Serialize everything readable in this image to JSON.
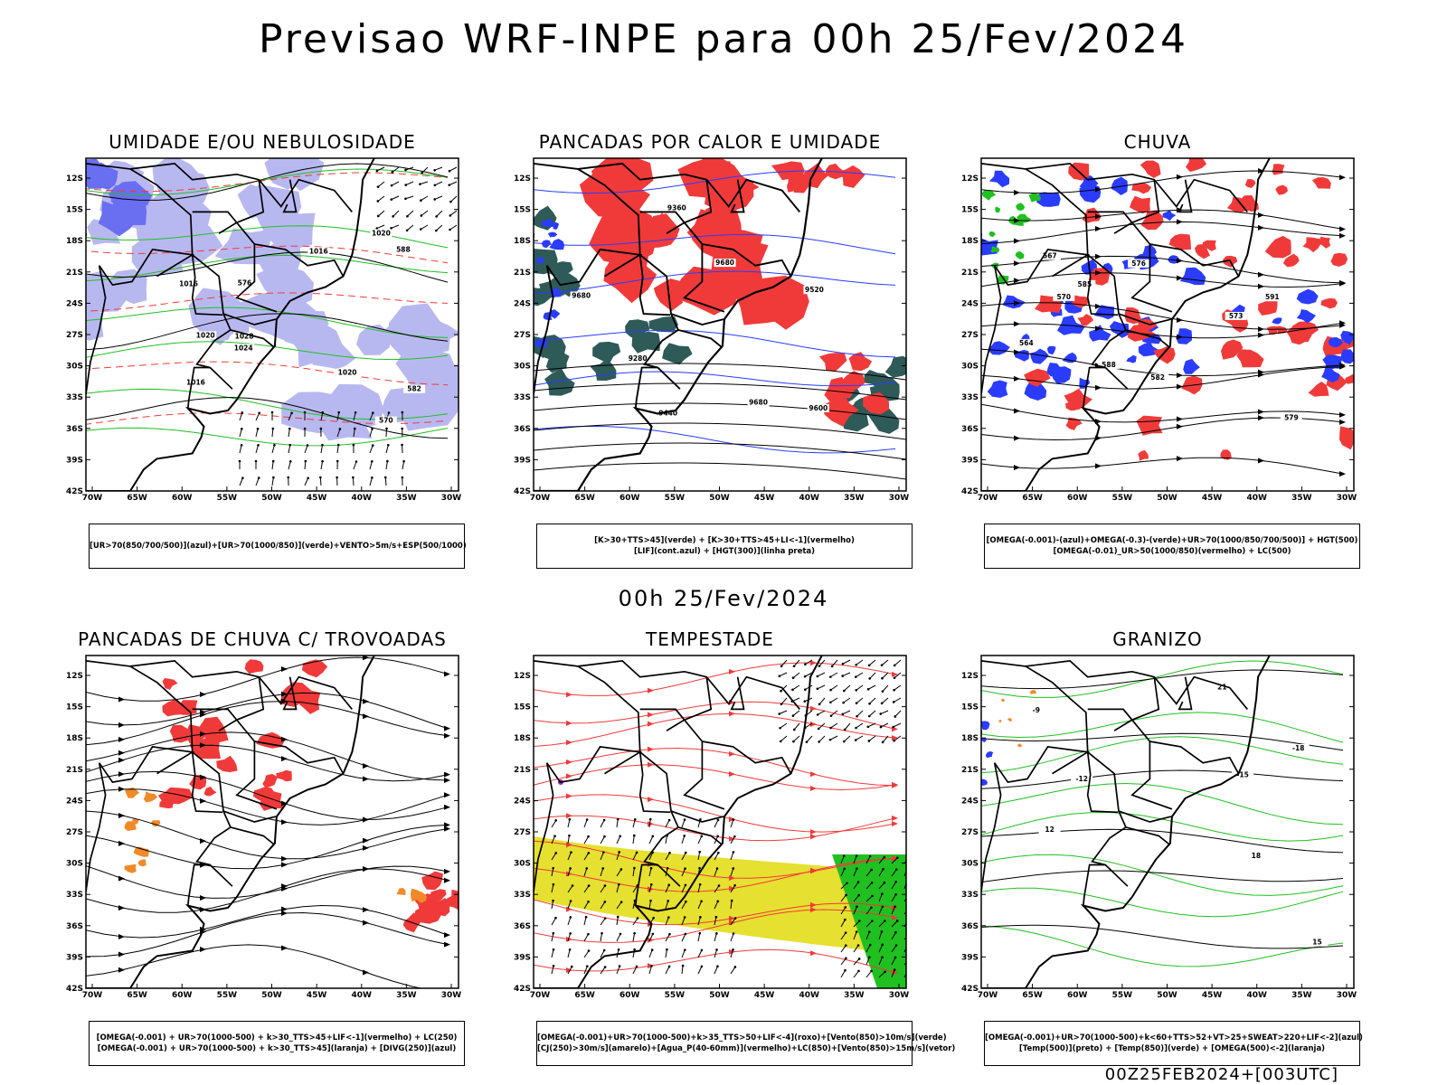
{
  "header": {
    "title": "Previsao WRF-INPE  para 00h 25/Fev/2024"
  },
  "subheader": {
    "time": "00h 25/Fev/2024"
  },
  "footer": {
    "stamp": "00Z25FEB2024+[003UTC]"
  },
  "axes": {
    "lat": [
      "12S",
      "15S",
      "18S",
      "21S",
      "24S",
      "27S",
      "30S",
      "33S",
      "36S",
      "39S",
      "42S"
    ],
    "lon": [
      "70W",
      "65W",
      "60W",
      "55W",
      "50W",
      "45W",
      "40W",
      "35W",
      "30W"
    ]
  },
  "colors": {
    "red": "#f03a3a",
    "green": "#20c020",
    "blue": "#2a3cff",
    "lavender": "#b8b8f0",
    "teal": "#2e5a58",
    "orange": "#f08a28",
    "yellow": "#e6e030",
    "purple": "#9a20c0"
  },
  "panels": [
    {
      "title": "UMIDADE E/OU NEBULOSIDADE",
      "legend": [
        "[UR>70(850/700/500)](azul)+[UR>70(1000/850)](verde)+VENTO>5m/s+ESP(500/1000)"
      ],
      "labels": [
        "1016",
        "1016",
        "1016",
        "1020",
        "1020",
        "1020",
        "1024",
        "1028",
        "570",
        "576",
        "582",
        "588"
      ]
    },
    {
      "title": "PANCADAS POR CALOR E UMIDADE",
      "legend": [
        "[K>30+TTS>45](verde) + [K>30+TTS>45+LI<-1](vermelho)",
        "[LIF](cont.azul) + [HGT(300)](linha preta)"
      ],
      "labels": [
        "9680",
        "9680",
        "9600",
        "9520",
        "9440",
        "9360",
        "9280",
        "9680"
      ]
    },
    {
      "title": "CHUVA",
      "legend": [
        "[OMEGA(-0.001)-(azul)+OMEGA(-0.3)-(verde)+UR>70(1000/850/700/500)] + HGT(500)",
        "[OMEGA(-0.01)_UR>50(1000/850)(vermelho) + LC(500)"
      ],
      "labels": [
        "588",
        "585",
        "582",
        "579",
        "576",
        "573",
        "570",
        "567",
        "564",
        "591"
      ]
    },
    {
      "title": "PANCADAS DE CHUVA C/ TROVOADAS",
      "legend": [
        "[OMEGA(-0.001) + UR>70(1000-500) + k>30_TTS>45+LIF<-1](vermelho) + LC(250)",
        "[OMEGA(-0.001) + UR>70(1000-500) + k>30_TTS>45](laranja) + [DIVG(250)](azul)"
      ],
      "labels": []
    },
    {
      "title": "TEMPESTADE",
      "legend": [
        "[OMEGA(-0.001)+UR>70(1000-500)+k>35_TTS>50+LIF<-4](roxo)+[Vento(850)>10m/s](verde)",
        "[CJ(250)>30m/s](amarelo)+[Agua_P(40-60mm)](vermelho)+LC(850)+[Vento(850)>15m/s](vetor)"
      ],
      "labels": []
    },
    {
      "title": "GRANIZO",
      "legend": [
        "[OMEGA(-0.001)+UR>70(1000-500)+k<60+TTS>52+VT>25+SWEAT>220+LIF<-2](azul)",
        "[Temp(500)](preto) + [Temp(850)](verde) + [OMEGA(500)<-2](laranja)"
      ],
      "labels": [
        "-12",
        "-15",
        "-18",
        "-9",
        "15",
        "18",
        "21",
        "12"
      ]
    }
  ]
}
